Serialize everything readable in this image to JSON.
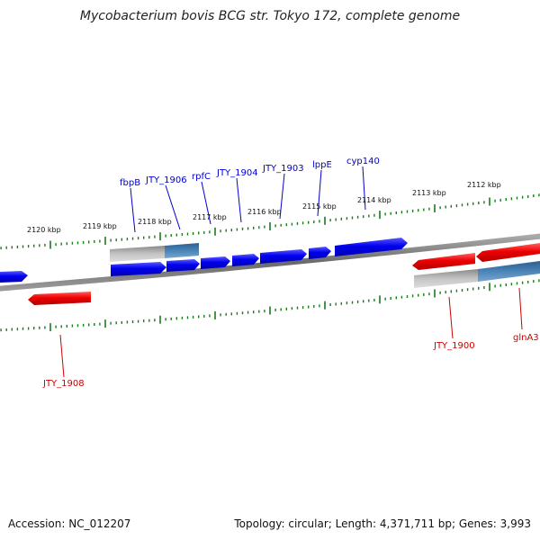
{
  "title": "Mycobacterium bovis BCG str. Tokyo 172, complete genome",
  "footer": {
    "accession": "Accession: NC_012207",
    "summary": "Topology: circular; Length: 4,371,711 bp; Genes: 3,993"
  },
  "colors": {
    "plus_strand": "#0000ee",
    "minus_strand": "#ee0000",
    "feature_label_plus": "#0000cc",
    "feature_label_minus": "#cc0000",
    "backbone": "#808080",
    "tick": "#1a7a1a",
    "region_gray": "#b0b0b0",
    "region_steel": "#4a7fb0"
  },
  "scale_labels": [
    "2120 kbp",
    "2119 kbp",
    "2118 kbp",
    "2117 kbp",
    "2116 kbp",
    "2115 kbp",
    "2114 kbp",
    "2113 kbp",
    "2112 kbp"
  ],
  "genes_plus": [
    "fbpB",
    "JTY_1906",
    "rpfC",
    "JTY_1904",
    "JTY_1903",
    "lppE",
    "cyp140"
  ],
  "genes_minus": [
    "JTY_1908",
    "JTY_1900",
    "glnA3"
  ]
}
